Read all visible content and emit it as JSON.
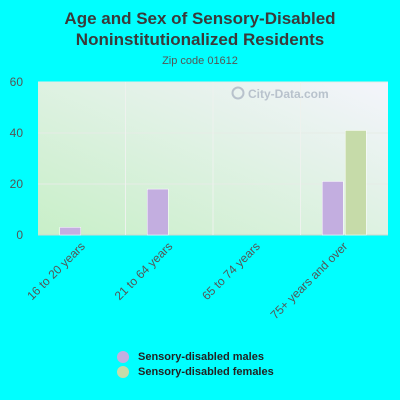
{
  "chart_data": {
    "type": "bar",
    "title_line1": "Age and Sex of Sensory-Disabled",
    "title_line2": "Noninstitutionalized Residents",
    "subtitle": "Zip code 01612",
    "watermark": "City-Data.com",
    "categories": [
      "16 to 20 years",
      "21 to 64 years",
      "65 to 74 years",
      "75+ years and over"
    ],
    "series": [
      {
        "name": "Sensory-disabled males",
        "color": "#c3aee0",
        "values": [
          3,
          18,
          0,
          21
        ]
      },
      {
        "name": "Sensory-disabled females",
        "color": "#c6dba9",
        "values": [
          0,
          0,
          0,
          41
        ]
      }
    ],
    "ylim": [
      0,
      60
    ],
    "yticks": [
      0,
      20,
      40,
      60
    ],
    "grid": true,
    "legend_position": "bottom"
  }
}
